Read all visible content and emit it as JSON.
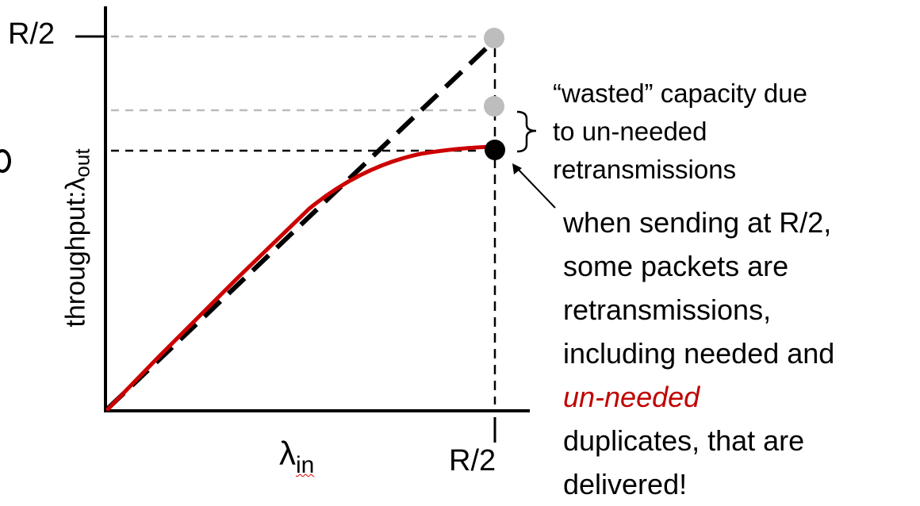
{
  "y_tick_label": "R/2",
  "y_axis_label": {
    "main": "throughput:",
    "symbol": "λ",
    "sub": "out"
  },
  "x_axis_labels": {
    "symbol": "λ",
    "sub": "in",
    "tick": "R/2"
  },
  "annotation_wasted": "“wasted” capacity due\nto un-needed\nretransmissions",
  "annotation_sending": {
    "line1": "when sending at R/2,",
    "line2": "some packets are",
    "line3": "retransmissions,",
    "line4": "including needed and",
    "line5_red": "un-needed",
    "line6": "duplicates, that are",
    "line7": "delivered!"
  },
  "colors": {
    "curve": "#cc0000",
    "dashed_ref": "#bbbbbb",
    "marker_gray": "#bdbdbd",
    "marker_black": "#000000"
  }
}
